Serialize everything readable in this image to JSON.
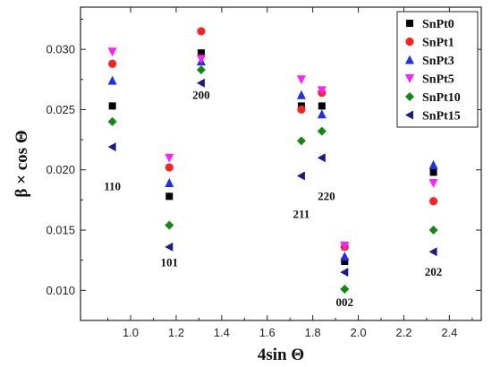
{
  "chart_data": {
    "type": "scatter",
    "xlabel": "4sin Θ",
    "ylabel": "β × cos Θ",
    "xlim": [
      0.78,
      2.54
    ],
    "ylim": [
      0.0075,
      0.0335
    ],
    "xticks": [
      "1.0",
      "1.2",
      "1.4",
      "1.6",
      "1.8",
      "2.0",
      "2.2",
      "2.4"
    ],
    "yticks": [
      "0.010",
      "0.015",
      "0.020",
      "0.025",
      "0.030"
    ],
    "x": [
      0.92,
      1.17,
      1.31,
      1.75,
      1.84,
      1.94,
      2.33
    ],
    "legend_position": "top-right",
    "series": [
      {
        "name": "SnPt0",
        "marker": "square",
        "color": "#000000",
        "values": [
          0.0253,
          0.0178,
          0.0297,
          0.0253,
          0.0253,
          0.0124,
          0.0198
        ]
      },
      {
        "name": "SnPt1",
        "marker": "circle",
        "color": "#ff2020",
        "values": [
          0.0288,
          0.0202,
          0.0315,
          0.025,
          0.0264,
          0.0136,
          0.0174
        ]
      },
      {
        "name": "SnPt3",
        "marker": "triangle-up",
        "color": "#1f2ff0",
        "values": [
          0.0274,
          0.0189,
          0.029,
          0.0262,
          0.0246,
          0.0128,
          0.0204
        ]
      },
      {
        "name": "SnPt5",
        "marker": "triangle-down",
        "color": "#ff20ff",
        "values": [
          0.0298,
          0.021,
          0.0292,
          0.0275,
          0.0266,
          0.0137,
          0.0189
        ]
      },
      {
        "name": "SnPt10",
        "marker": "diamond",
        "color": "#118811",
        "values": [
          0.024,
          0.0154,
          0.0283,
          0.0224,
          0.0232,
          0.0101,
          0.015
        ]
      },
      {
        "name": "SnPt15",
        "marker": "triangle-left",
        "color": "#1a1a8c",
        "values": [
          0.0219,
          0.0136,
          0.0272,
          0.0195,
          0.021,
          0.0115,
          0.0132
        ]
      }
    ],
    "annotations": [
      {
        "text": "110",
        "x": 0.92,
        "y": 0.0183
      },
      {
        "text": "101",
        "x": 1.17,
        "y": 0.012
      },
      {
        "text": "200",
        "x": 1.31,
        "y": 0.0259
      },
      {
        "text": "211",
        "x": 1.75,
        "y": 0.016
      },
      {
        "text": "220",
        "x": 1.86,
        "y": 0.0175
      },
      {
        "text": "002",
        "x": 1.94,
        "y": 0.0087
      },
      {
        "text": "202",
        "x": 2.33,
        "y": 0.0112
      }
    ]
  }
}
